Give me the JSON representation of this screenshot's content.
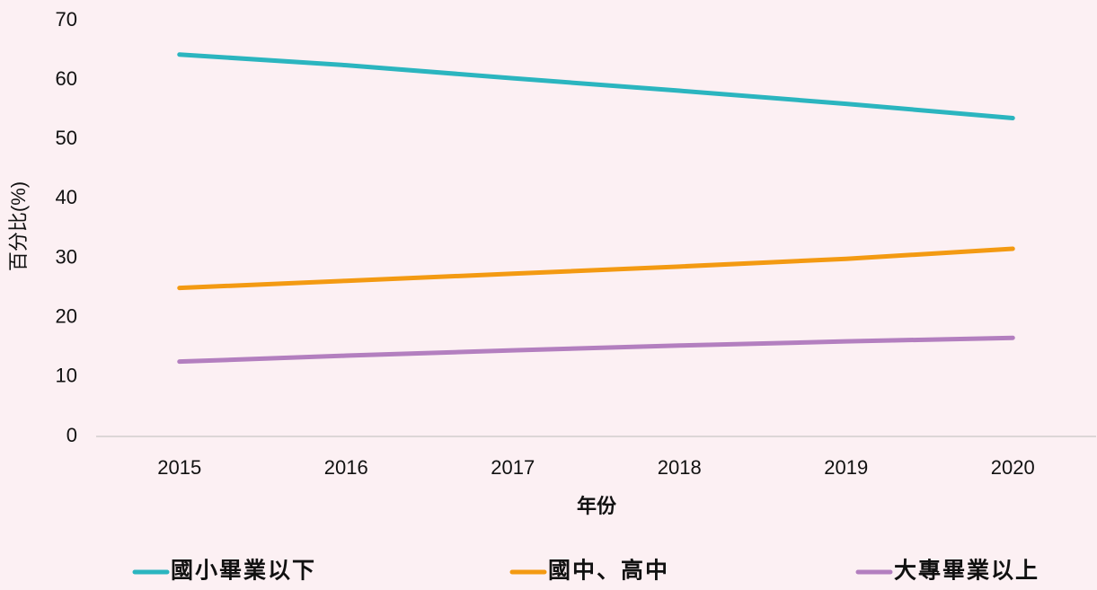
{
  "chart_data": {
    "type": "line",
    "categories": [
      "2015",
      "2016",
      "2017",
      "2018",
      "2019",
      "2020"
    ],
    "series": [
      {
        "name": "國小畢業以下",
        "color": "#2bb5bf",
        "values": [
          64.3,
          62.5,
          60.3,
          58.2,
          56.0,
          53.6
        ]
      },
      {
        "name": "國中、高中",
        "color": "#f39a12",
        "values": [
          25.0,
          26.2,
          27.4,
          28.6,
          29.9,
          31.6
        ]
      },
      {
        "name": "大專畢業以上",
        "color": "#b37fbf",
        "values": [
          12.6,
          13.6,
          14.5,
          15.3,
          16.0,
          16.6
        ]
      }
    ],
    "xlabel": "年份",
    "ylabel": "百分比(%)",
    "ylim": [
      0,
      70
    ],
    "yticks": [
      0,
      10,
      20,
      30,
      40,
      50,
      60,
      70
    ],
    "grid": false,
    "legend": "bottom"
  }
}
